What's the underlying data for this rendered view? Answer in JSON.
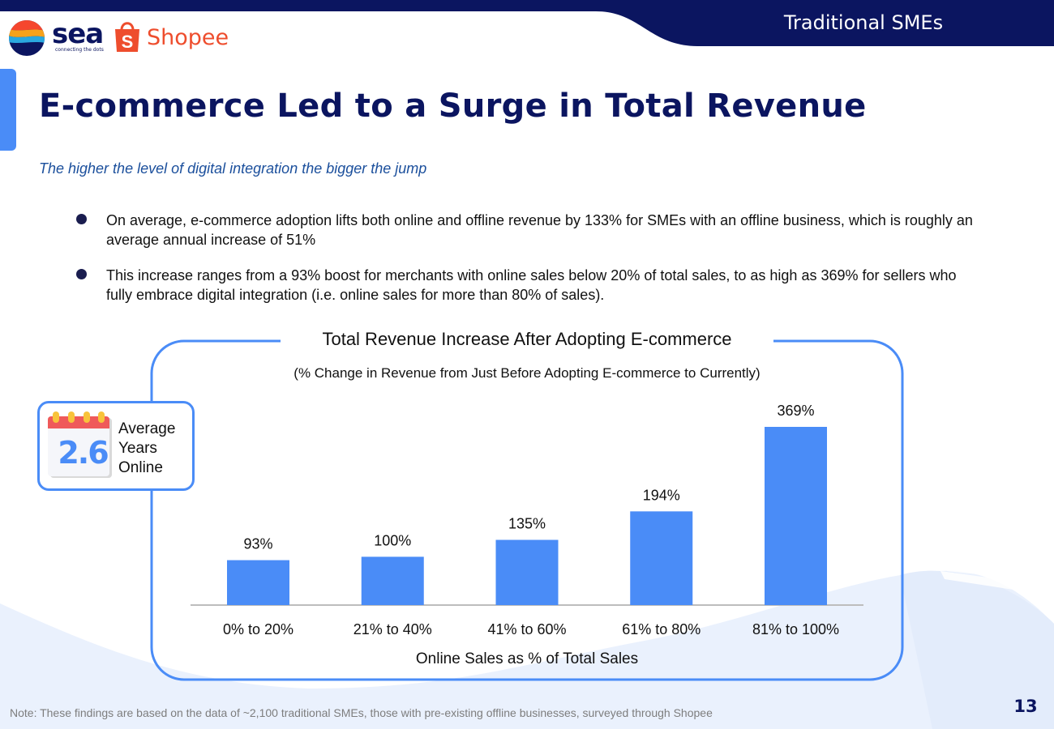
{
  "header": {
    "section_tag": "Traditional SMEs"
  },
  "logos": {
    "sea_name": "sea",
    "sea_tagline": "connecting the dots",
    "shopee_name": "Shopee"
  },
  "page": {
    "title": "E-commerce Led to a Surge in Total Revenue",
    "subtitle": "The higher the level of digital integration the bigger the jump",
    "bullets": [
      "On average, e-commerce adoption lifts both online and offline revenue by 133% for SMEs with an offline business, which is roughly an average annual increase of 51%",
      "This increase ranges from a 93% boost for merchants with online sales below 20% of total sales, to as high as 369% for sellers who fully embrace digital integration (i.e. online sales for more than 80% of sales)."
    ]
  },
  "stat_card": {
    "value": "2.6",
    "label": "Average Years Online"
  },
  "chart_data": {
    "type": "bar",
    "title": "Total Revenue Increase After Adopting E-commerce",
    "subtitle": "(% Change in Revenue from Just Before Adopting E-commerce to Currently)",
    "xlabel": "Online Sales as % of Total Sales",
    "ylabel": "",
    "categories": [
      "0% to 20%",
      "21% to 40%",
      "41% to 60%",
      "61% to 80%",
      "81% to 100%"
    ],
    "values": [
      93,
      100,
      135,
      194,
      369
    ],
    "data_labels": [
      "93%",
      "100%",
      "135%",
      "194%",
      "369%"
    ],
    "ylim": [
      0,
      369
    ],
    "bar_color": "#4a8cf7"
  },
  "footer": {
    "note": "Note: These findings are based on the data of ~2,100 traditional SMEs, those with pre-existing offline businesses, surveyed through Shopee",
    "page_number": "13"
  },
  "colors": {
    "navy": "#0b1560",
    "accent_blue": "#4a8cf7",
    "subtitle_blue": "#1b4f9c",
    "shopee_orange": "#ee4d2d"
  }
}
